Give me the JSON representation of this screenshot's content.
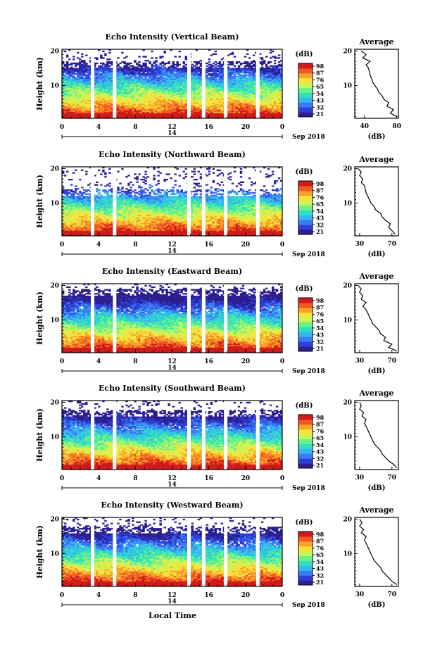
{
  "figure": {
    "colors": {
      "missing": "#ffffff",
      "axis": "#000000",
      "profile": "#000000"
    },
    "colormap": [
      "#2c1f8f",
      "#2f3fd6",
      "#3a7bf2",
      "#36b7ef",
      "#31dfc0",
      "#6cf08a",
      "#c7f55a",
      "#f7e23c",
      "#f8a22a",
      "#f05a22",
      "#cf1b1b"
    ],
    "xlabel": "Local Time",
    "date_left": "14",
    "date_right": "Sep 2018"
  },
  "chart_data": [
    {
      "type": "heatmap",
      "title": "Echo Intensity (Vertical Beam)",
      "ylabel": "Height (km)",
      "x_ticks": [
        "0",
        "4",
        "8",
        "12",
        "16",
        "20",
        "0"
      ],
      "y_ticks": [
        "20",
        "10"
      ],
      "xlim": [
        0,
        24
      ],
      "ylim": [
        0.5,
        20.5
      ],
      "colorbar": {
        "unit": "(dB)",
        "ticks": [
          "98",
          "87",
          "76",
          "65",
          "54",
          "43",
          "32",
          "21"
        ]
      },
      "gaps_hours": [
        3.3,
        5.7,
        13.8,
        15.4,
        17.8,
        21.3
      ],
      "echo_top_km": 17,
      "profile": {
        "title": "Average",
        "xlabel": "(dB)",
        "x_ticks": [
          "40",
          "80"
        ],
        "xlim": [
          28,
          82
        ],
        "y_ticks": [
          "20",
          "10"
        ],
        "height_km": [
          1,
          2,
          3,
          4,
          5,
          6,
          7,
          8,
          9,
          10,
          11,
          12,
          13,
          14,
          15,
          16,
          17,
          18,
          19,
          20
        ],
        "values_db": [
          80,
          72,
          76,
          68,
          70,
          64,
          62,
          58,
          56,
          53,
          50,
          49,
          47,
          46,
          45,
          42,
          47,
          38,
          42,
          36
        ]
      }
    },
    {
      "type": "heatmap",
      "title": "Echo Intensity (Northward Beam)",
      "ylabel": "Height (km)",
      "x_ticks": [
        "0",
        "4",
        "8",
        "12",
        "16",
        "20",
        "0"
      ],
      "y_ticks": [
        "20",
        "10"
      ],
      "xlim": [
        0,
        24
      ],
      "ylim": [
        0.5,
        20.5
      ],
      "colorbar": {
        "unit": "(dB)",
        "ticks": [
          "98",
          "87",
          "76",
          "65",
          "54",
          "43",
          "32",
          "21"
        ]
      },
      "gaps_hours": [
        3.3,
        5.7,
        13.8,
        15.4,
        17.8,
        21.3
      ],
      "echo_top_km": 14,
      "profile": {
        "title": "Average",
        "xlabel": "(dB)",
        "x_ticks": [
          "30",
          "70"
        ],
        "xlim": [
          24,
          78
        ],
        "y_ticks": [
          "20",
          "10"
        ],
        "height_km": [
          1,
          2,
          3,
          4,
          5,
          6,
          7,
          8,
          9,
          10,
          11,
          12,
          13,
          14,
          15,
          16,
          17,
          18,
          19,
          20
        ],
        "values_db": [
          74,
          70,
          66,
          68,
          62,
          58,
          56,
          50,
          48,
          44,
          42,
          40,
          38,
          37,
          36,
          32,
          34,
          30,
          32,
          28
        ]
      }
    },
    {
      "type": "heatmap",
      "title": "Echo Intensity (Eastward Beam)",
      "ylabel": "Height (km)",
      "x_ticks": [
        "0",
        "4",
        "8",
        "12",
        "16",
        "20",
        "0"
      ],
      "y_ticks": [
        "20",
        "10"
      ],
      "xlim": [
        0,
        24
      ],
      "ylim": [
        0.5,
        20.5
      ],
      "colorbar": {
        "unit": "(dB)",
        "ticks": [
          "98",
          "87",
          "76",
          "65",
          "54",
          "43",
          "32",
          "21"
        ]
      },
      "gaps_hours": [
        3.3,
        5.7,
        13.8,
        15.4,
        17.8,
        21.3
      ],
      "echo_top_km": 19,
      "profile": {
        "title": "Average",
        "xlabel": "(dB)",
        "x_ticks": [
          "30",
          "70"
        ],
        "xlim": [
          24,
          78
        ],
        "y_ticks": [
          "20",
          "10"
        ],
        "height_km": [
          1,
          2,
          3,
          4,
          5,
          6,
          7,
          8,
          9,
          10,
          11,
          12,
          13,
          14,
          15,
          16,
          17,
          18,
          19,
          20
        ],
        "values_db": [
          76,
          66,
          70,
          60,
          62,
          56,
          54,
          50,
          46,
          44,
          42,
          40,
          38,
          34,
          38,
          32,
          34,
          30,
          32,
          28
        ]
      }
    },
    {
      "type": "heatmap",
      "title": "Echo Intensity (Southward Beam)",
      "ylabel": "Height (km)",
      "x_ticks": [
        "0",
        "4",
        "8",
        "12",
        "16",
        "20",
        "0"
      ],
      "y_ticks": [
        "20",
        "10"
      ],
      "xlim": [
        0,
        24
      ],
      "ylim": [
        0.5,
        20.5
      ],
      "colorbar": {
        "unit": "(dB)",
        "ticks": [
          "98",
          "87",
          "76",
          "65",
          "54",
          "43",
          "32",
          "21"
        ]
      },
      "gaps_hours": [
        3.3,
        5.7,
        13.8,
        15.4,
        17.8,
        21.3
      ],
      "echo_top_km": 18,
      "profile": {
        "title": "Average",
        "xlabel": "(dB)",
        "x_ticks": [
          "30",
          "70"
        ],
        "xlim": [
          24,
          78
        ],
        "y_ticks": [
          "20",
          "10"
        ],
        "height_km": [
          1,
          2,
          3,
          4,
          5,
          6,
          7,
          8,
          9,
          10,
          11,
          12,
          13,
          14,
          15,
          16,
          17,
          18,
          19,
          20
        ],
        "values_db": [
          76,
          72,
          66,
          62,
          58,
          56,
          52,
          48,
          46,
          44,
          42,
          40,
          38,
          36,
          38,
          33,
          35,
          30,
          32,
          30
        ]
      }
    },
    {
      "type": "heatmap",
      "title": "Echo Intensity (Westward Beam)",
      "ylabel": "Height (km)",
      "x_ticks": [
        "0",
        "4",
        "8",
        "12",
        "16",
        "20",
        "0"
      ],
      "y_ticks": [
        "20",
        "10"
      ],
      "xlim": [
        0,
        24
      ],
      "ylim": [
        0.5,
        20.5
      ],
      "colorbar": {
        "unit": "(dB)",
        "ticks": [
          "98",
          "87",
          "76",
          "65",
          "54",
          "43",
          "32",
          "21"
        ]
      },
      "gaps_hours": [
        3.3,
        5.7,
        13.8,
        15.4,
        17.8,
        21.3
      ],
      "echo_top_km": 18,
      "profile": {
        "title": "Average",
        "xlabel": "(dB)",
        "x_ticks": [
          "30",
          "70"
        ],
        "xlim": [
          24,
          78
        ],
        "y_ticks": [
          "20",
          "10"
        ],
        "height_km": [
          1,
          2,
          3,
          4,
          5,
          6,
          7,
          8,
          9,
          10,
          11,
          12,
          13,
          14,
          15,
          16,
          17,
          18,
          19,
          20
        ],
        "values_db": [
          76,
          70,
          66,
          62,
          58,
          56,
          52,
          48,
          46,
          44,
          42,
          40,
          38,
          36,
          38,
          32,
          35,
          30,
          33,
          30
        ]
      }
    }
  ]
}
